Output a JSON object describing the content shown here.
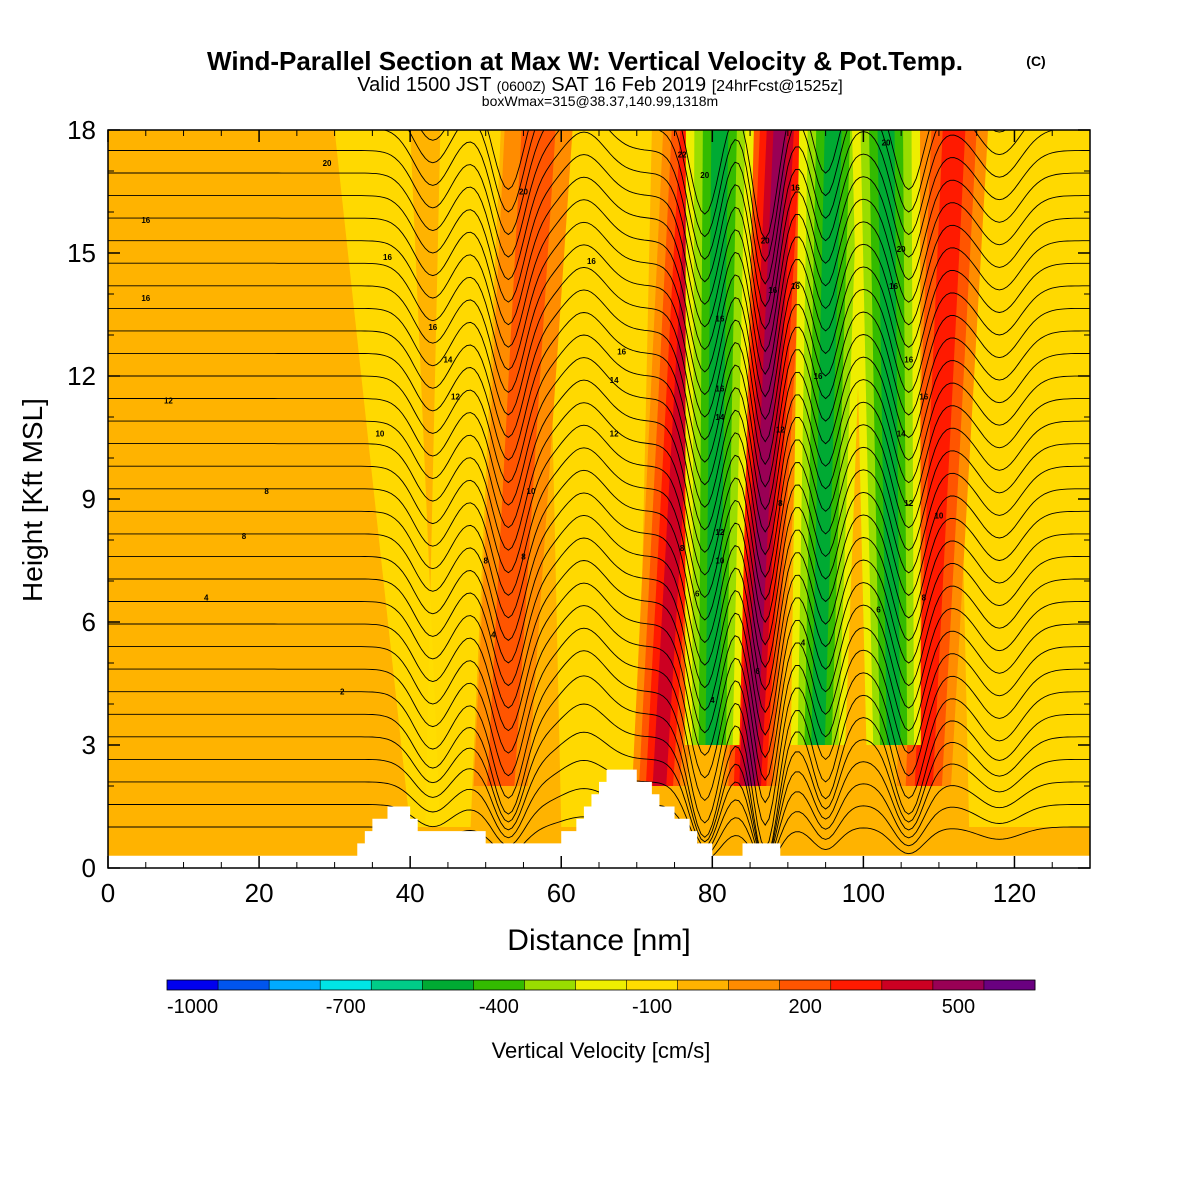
{
  "header": {
    "title": "Wind-Parallel Section at Max W: Vertical Velocity & Pot.Temp.",
    "copyright": "(C)",
    "valid_prefix": "Valid 1500 JST",
    "valid_zulu": "(0600Z)",
    "valid_date": "SAT 16 Feb 2019",
    "forecast": "[24hrFcst@1525z]",
    "boxline": "boxWmax=315@38.37,140.99,1318m"
  },
  "chart_data": {
    "type": "heatmap",
    "xlabel": "Distance [nm]",
    "ylabel": "Height [Kft MSL]",
    "xlim": [
      0,
      130
    ],
    "ylim": [
      0,
      18
    ],
    "xticks": [
      "0",
      "20",
      "40",
      "60",
      "80",
      "100",
      "120"
    ],
    "yticks": [
      "0",
      "3",
      "6",
      "9",
      "12",
      "15",
      "18"
    ],
    "colorbar": {
      "label": "Vertical Velocity [cm/s]",
      "tick_labels": [
        "-1000",
        "-700",
        "-400",
        "-100",
        "200",
        "500"
      ],
      "colors": [
        "#0000ee",
        "#0055ee",
        "#00aaff",
        "#00e5e5",
        "#00cc88",
        "#00aa33",
        "#33bb00",
        "#99dd00",
        "#eeee00",
        "#ffdd00",
        "#ffb300",
        "#ff8c00",
        "#ff5500",
        "#ff1a00",
        "#cc0022",
        "#990055",
        "#6a0080"
      ]
    },
    "updraft_bands": [
      {
        "name": "band-53",
        "x_base": 52,
        "x_top": 57,
        "w_max": 200
      },
      {
        "name": "band-76",
        "x_base": 73,
        "x_top": 78,
        "w_max": 400
      },
      {
        "name": "band-88",
        "x_base": 85,
        "x_top": 89,
        "w_max": 500
      },
      {
        "name": "band-108",
        "x_base": 108,
        "x_top": 112,
        "w_max": 300
      }
    ],
    "downdraft_bands": [
      {
        "name": "band-80",
        "x_base": 80,
        "x_top": 81,
        "w_min": -400
      },
      {
        "name": "band-94",
        "x_base": 94,
        "x_top": 96,
        "w_min": -400
      },
      {
        "name": "band-104",
        "x_base": 104,
        "x_top": 103,
        "w_min": -400
      }
    ],
    "terrain": [
      [
        0,
        0.3
      ],
      [
        32,
        0.3
      ],
      [
        33,
        0.6
      ],
      [
        34,
        0.9
      ],
      [
        35,
        1.2
      ],
      [
        37,
        1.5
      ],
      [
        39,
        1.5
      ],
      [
        40,
        1.2
      ],
      [
        41,
        0.9
      ],
      [
        48,
        0.9
      ],
      [
        50,
        0.6
      ],
      [
        58,
        0.6
      ],
      [
        60,
        0.9
      ],
      [
        62,
        1.2
      ],
      [
        63,
        1.5
      ],
      [
        64,
        1.8
      ],
      [
        65,
        2.1
      ],
      [
        66,
        2.4
      ],
      [
        69,
        2.4
      ],
      [
        70,
        2.1
      ],
      [
        72,
        1.8
      ],
      [
        73,
        1.5
      ],
      [
        75,
        1.2
      ],
      [
        77,
        0.9
      ],
      [
        78,
        0.6
      ],
      [
        80,
        0.3
      ],
      [
        83,
        0.3
      ],
      [
        84,
        0.6
      ],
      [
        88,
        0.6
      ],
      [
        89,
        0.3
      ],
      [
        130,
        0.3
      ]
    ],
    "isentrope_labels": [
      {
        "text": "20",
        "x": 29,
        "y": 17.2
      },
      {
        "text": "16",
        "x": 5,
        "y": 15.8
      },
      {
        "text": "16",
        "x": 5,
        "y": 13.9
      },
      {
        "text": "16",
        "x": 37,
        "y": 14.9
      },
      {
        "text": "16",
        "x": 43,
        "y": 13.2
      },
      {
        "text": "14",
        "x": 45,
        "y": 12.4
      },
      {
        "text": "12",
        "x": 46,
        "y": 11.5
      },
      {
        "text": "12",
        "x": 8,
        "y": 11.4
      },
      {
        "text": "10",
        "x": 36,
        "y": 10.6
      },
      {
        "text": "8",
        "x": 21,
        "y": 9.2
      },
      {
        "text": "8",
        "x": 18,
        "y": 8.1
      },
      {
        "text": "4",
        "x": 13,
        "y": 6.6
      },
      {
        "text": "2",
        "x": 31,
        "y": 4.3
      },
      {
        "text": "20",
        "x": 55,
        "y": 16.5
      },
      {
        "text": "16",
        "x": 64,
        "y": 14.8
      },
      {
        "text": "16",
        "x": 68,
        "y": 12.6
      },
      {
        "text": "14",
        "x": 67,
        "y": 11.9
      },
      {
        "text": "12",
        "x": 67,
        "y": 10.6
      },
      {
        "text": "10",
        "x": 56,
        "y": 9.2
      },
      {
        "text": "8",
        "x": 50,
        "y": 7.5
      },
      {
        "text": "8",
        "x": 55,
        "y": 7.6
      },
      {
        "text": "4",
        "x": 51,
        "y": 5.7
      },
      {
        "text": "22",
        "x": 76,
        "y": 17.4
      },
      {
        "text": "20",
        "x": 79,
        "y": 16.9
      },
      {
        "text": "16",
        "x": 81,
        "y": 13.4
      },
      {
        "text": "16",
        "x": 81,
        "y": 11.7
      },
      {
        "text": "14",
        "x": 81,
        "y": 11.0
      },
      {
        "text": "12",
        "x": 81,
        "y": 8.2
      },
      {
        "text": "10",
        "x": 81,
        "y": 7.5
      },
      {
        "text": "8",
        "x": 76,
        "y": 7.8
      },
      {
        "text": "6",
        "x": 78,
        "y": 6.7
      },
      {
        "text": "4",
        "x": 80,
        "y": 4.1
      },
      {
        "text": "20",
        "x": 87,
        "y": 15.3
      },
      {
        "text": "16",
        "x": 88,
        "y": 14.1
      },
      {
        "text": "16",
        "x": 91,
        "y": 16.6
      },
      {
        "text": "16",
        "x": 91,
        "y": 14.2
      },
      {
        "text": "12",
        "x": 89,
        "y": 10.7
      },
      {
        "text": "8",
        "x": 89,
        "y": 8.9
      },
      {
        "text": "6",
        "x": 86,
        "y": 4.8
      },
      {
        "text": "4",
        "x": 92,
        "y": 5.5
      },
      {
        "text": "16",
        "x": 94,
        "y": 12.0
      },
      {
        "text": "20",
        "x": 103,
        "y": 17.7
      },
      {
        "text": "20",
        "x": 105,
        "y": 15.1
      },
      {
        "text": "16",
        "x": 104,
        "y": 14.2
      },
      {
        "text": "16",
        "x": 106,
        "y": 12.4
      },
      {
        "text": "14",
        "x": 105,
        "y": 10.6
      },
      {
        "text": "12",
        "x": 106,
        "y": 8.9
      },
      {
        "text": "10",
        "x": 110,
        "y": 8.6
      },
      {
        "text": "8",
        "x": 108,
        "y": 6.6
      },
      {
        "text": "6",
        "x": 102,
        "y": 6.3
      },
      {
        "text": "16",
        "x": 108,
        "y": 11.5
      }
    ]
  }
}
